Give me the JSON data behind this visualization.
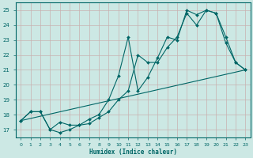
{
  "xlabel": "Humidex (Indice chaleur)",
  "xlim": [
    -0.5,
    23.5
  ],
  "ylim": [
    16.5,
    25.5
  ],
  "xticks": [
    0,
    1,
    2,
    3,
    4,
    5,
    6,
    7,
    8,
    9,
    10,
    11,
    12,
    13,
    14,
    15,
    16,
    17,
    18,
    19,
    20,
    21,
    22,
    23
  ],
  "yticks": [
    17,
    18,
    19,
    20,
    21,
    22,
    23,
    24,
    25
  ],
  "bg_color": "#cce8e4",
  "line_color": "#006666",
  "line1": {
    "x": [
      0,
      1,
      2,
      3,
      4,
      5,
      6,
      7,
      8,
      9,
      10,
      11,
      12,
      13,
      14,
      15,
      16,
      17,
      18,
      19,
      20,
      21,
      22,
      23
    ],
    "y": [
      17.6,
      18.2,
      18.2,
      17.0,
      17.5,
      17.3,
      17.3,
      17.7,
      18.0,
      19.0,
      20.6,
      23.2,
      19.6,
      20.5,
      21.8,
      23.2,
      23.0,
      25.0,
      24.7,
      25.0,
      24.8,
      23.2,
      21.5,
      21.0
    ]
  },
  "line2": {
    "x": [
      0,
      1,
      2,
      3,
      4,
      5,
      6,
      7,
      8,
      9,
      10,
      11,
      12,
      13,
      14,
      15,
      16,
      17,
      18,
      19,
      20,
      21,
      22,
      23
    ],
    "y": [
      17.6,
      18.2,
      18.2,
      17.0,
      16.8,
      17.0,
      17.3,
      17.4,
      17.8,
      18.2,
      19.0,
      19.6,
      22.0,
      21.5,
      21.5,
      22.5,
      23.2,
      24.8,
      24.0,
      25.0,
      24.8,
      22.8,
      21.5,
      21.0
    ]
  },
  "line3": {
    "x": [
      0,
      23
    ],
    "y": [
      17.6,
      21.0
    ]
  }
}
